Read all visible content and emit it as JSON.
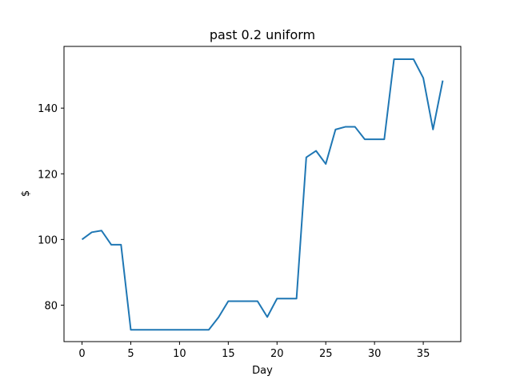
{
  "chart_data": {
    "type": "line",
    "title": "past 0.2 uniform",
    "xlabel": "Day",
    "ylabel": "$",
    "xlim": [
      -1.85,
      38.85
    ],
    "ylim": [
      68.9,
      158.8
    ],
    "xticks": [
      0,
      5,
      10,
      15,
      20,
      25,
      30,
      35
    ],
    "yticks": [
      80,
      100,
      120,
      140
    ],
    "grid": false,
    "line_color": "#1f77b4",
    "series": [
      {
        "x": [
          0,
          1,
          2,
          3,
          4,
          5,
          6,
          7,
          8,
          9,
          10,
          11,
          12,
          13,
          14,
          15,
          16,
          17,
          18,
          19,
          20,
          21,
          22,
          23,
          24,
          25,
          26,
          27,
          28,
          29,
          30,
          31,
          32,
          33,
          34,
          35,
          36,
          37
        ],
        "values": [
          100.0,
          102.2,
          102.7,
          98.4,
          98.4,
          72.5,
          72.5,
          72.5,
          72.5,
          72.5,
          72.5,
          72.5,
          72.5,
          72.5,
          76.3,
          81.2,
          81.2,
          81.2,
          81.2,
          76.4,
          82.0,
          82.0,
          82.0,
          125.0,
          127.0,
          123.0,
          133.5,
          134.3,
          134.3,
          130.5,
          130.5,
          130.5,
          154.9,
          154.9,
          154.9,
          149.2,
          133.5,
          148.4
        ]
      }
    ]
  }
}
